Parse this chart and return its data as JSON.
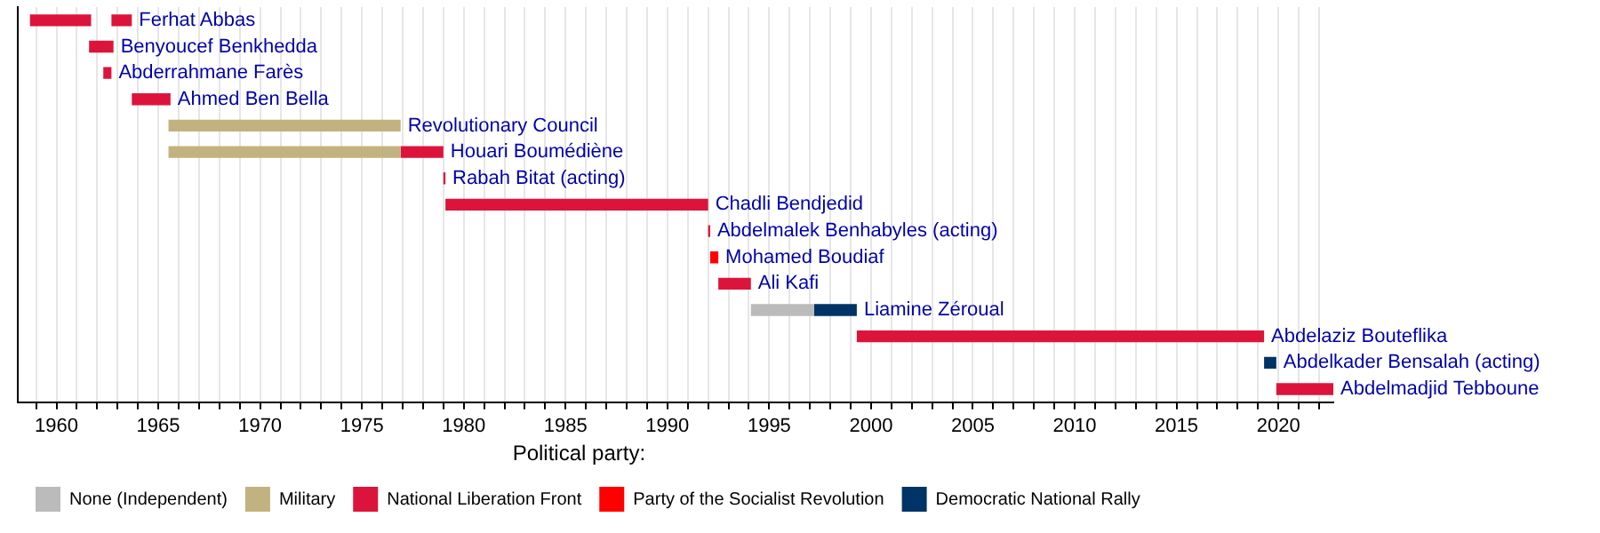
{
  "chart_data": {
    "type": "bar",
    "orientation": "horizontal",
    "stacked": false,
    "categories": [
      "Ferhat Abbas",
      "Benyoucef Benkhedda",
      "Abderrahmane Farès",
      "Ahmed Ben Bella",
      "Revolutionary Council",
      "Houari Boumédiène",
      "Rabah Bitat (acting)",
      "Chadli Bendjedid",
      "Abdelmalek Benhabyles (acting)",
      "Mohamed Boudiaf",
      "Ali Kafi",
      "Liamine Zéroual",
      "Abdelaziz Bouteflika",
      "Abdelkader Bensalah (acting)",
      "Abdelmadjid Tebboune"
    ],
    "series": [
      {
        "name": "None (Independent)",
        "color": "#bbbbbb",
        "base": [
          null,
          null,
          null,
          null,
          null,
          null,
          null,
          null,
          null,
          null,
          null,
          1994.1,
          null,
          null,
          null
        ],
        "values": [
          null,
          null,
          null,
          null,
          null,
          null,
          null,
          null,
          null,
          null,
          null,
          3.1,
          null,
          null,
          null
        ]
      },
      {
        "name": "Military",
        "color": "#c2b280",
        "base": [
          null,
          null,
          null,
          null,
          1965.5,
          1965.5,
          null,
          null,
          null,
          null,
          null,
          null,
          null,
          null,
          null
        ],
        "values": [
          null,
          null,
          null,
          null,
          11.4,
          11.4,
          null,
          null,
          null,
          null,
          null,
          null,
          null,
          null,
          null
        ]
      },
      {
        "name": "National Liberation Front",
        "color": "#dc143c",
        "base": [
          1958.7,
          1961.6,
          1962.3,
          1963.7,
          null,
          1976.9,
          1979.0,
          1979.1,
          1992.0,
          null,
          1992.5,
          null,
          1999.3,
          null,
          2019.9
        ],
        "values": [
          3.0,
          1.2,
          0.4,
          1.9,
          null,
          2.1,
          0.1,
          12.9,
          0.1,
          null,
          1.6,
          null,
          20.0,
          null,
          2.8
        ]
      },
      {
        "name": "Party of the Socialist Revolution",
        "color": "#ff0000",
        "base": [
          null,
          null,
          null,
          null,
          null,
          null,
          null,
          null,
          null,
          1992.1,
          null,
          null,
          null,
          null,
          null
        ],
        "values": [
          null,
          null,
          null,
          null,
          null,
          null,
          null,
          null,
          null,
          0.4,
          null,
          null,
          null,
          null,
          null
        ]
      },
      {
        "name": "Democratic National Rally",
        "color": "#003366",
        "base": [
          null,
          null,
          null,
          null,
          null,
          null,
          null,
          null,
          null,
          null,
          null,
          1997.2,
          null,
          2019.3,
          null
        ],
        "values": [
          null,
          null,
          null,
          null,
          null,
          null,
          null,
          null,
          null,
          null,
          null,
          2.1,
          null,
          0.6,
          null
        ]
      },
      {
        "color": "#dc143c",
        "base": [
          1962.7,
          null,
          null,
          null,
          null,
          null,
          null,
          null,
          null,
          null,
          null,
          null,
          null,
          null,
          null
        ],
        "values": [
          1.0,
          null,
          null,
          null,
          null,
          null,
          null,
          null,
          null,
          null,
          null,
          null,
          null,
          null,
          null
        ]
      }
    ],
    "xlim": [
      1958.1,
      2022.7
    ],
    "xticks": [
      {
        "value": 1959,
        "label": null
      },
      1960,
      {
        "value": 1961,
        "label": null
      },
      {
        "value": 1962,
        "label": null
      },
      {
        "value": 1963,
        "label": null
      },
      {
        "value": 1964,
        "label": null
      },
      1965,
      {
        "value": 1966,
        "label": null
      },
      {
        "value": 1967,
        "label": null
      },
      {
        "value": 1968,
        "label": null
      },
      {
        "value": 1969,
        "label": null
      },
      1970,
      {
        "value": 1971,
        "label": null
      },
      {
        "value": 1972,
        "label": null
      },
      {
        "value": 1973,
        "label": null
      },
      {
        "value": 1974,
        "label": null
      },
      1975,
      {
        "value": 1976,
        "label": null
      },
      {
        "value": 1977,
        "label": null
      },
      {
        "value": 1978,
        "label": null
      },
      {
        "value": 1979,
        "label": null
      },
      1980,
      {
        "value": 1981,
        "label": null
      },
      {
        "value": 1982,
        "label": null
      },
      {
        "value": 1983,
        "label": null
      },
      {
        "value": 1984,
        "label": null
      },
      1985,
      {
        "value": 1986,
        "label": null
      },
      {
        "value": 1987,
        "label": null
      },
      {
        "value": 1988,
        "label": null
      },
      {
        "value": 1989,
        "label": null
      },
      1990,
      {
        "value": 1991,
        "label": null
      },
      {
        "value": 1992,
        "label": null
      },
      {
        "value": 1993,
        "label": null
      },
      {
        "value": 1994,
        "label": null
      },
      1995,
      {
        "value": 1996,
        "label": null
      },
      {
        "value": 1997,
        "label": null
      },
      {
        "value": 1998,
        "label": null
      },
      {
        "value": 1999,
        "label": null
      },
      2000,
      {
        "value": 2001,
        "label": null
      },
      {
        "value": 2002,
        "label": null
      },
      {
        "value": 2003,
        "label": null
      },
      {
        "value": 2004,
        "label": null
      },
      2005,
      {
        "value": 2006,
        "label": null
      },
      {
        "value": 2007,
        "label": null
      },
      {
        "value": 2008,
        "label": null
      },
      {
        "value": 2009,
        "label": null
      },
      2010,
      {
        "value": 2011,
        "label": null
      },
      {
        "value": 2012,
        "label": null
      },
      {
        "value": 2013,
        "label": null
      },
      {
        "value": 2014,
        "label": null
      },
      2015,
      {
        "value": 2016,
        "label": null
      },
      {
        "value": 2017,
        "label": null
      },
      {
        "value": 2018,
        "label": null
      },
      {
        "value": 2019,
        "label": null
      },
      2020,
      {
        "value": 2021,
        "label": null
      },
      {
        "value": 2022,
        "label": null
      }
    ],
    "grid": "x",
    "tick_labels": "x",
    "legend": "bottom",
    "legend_title": "Political party:"
  }
}
